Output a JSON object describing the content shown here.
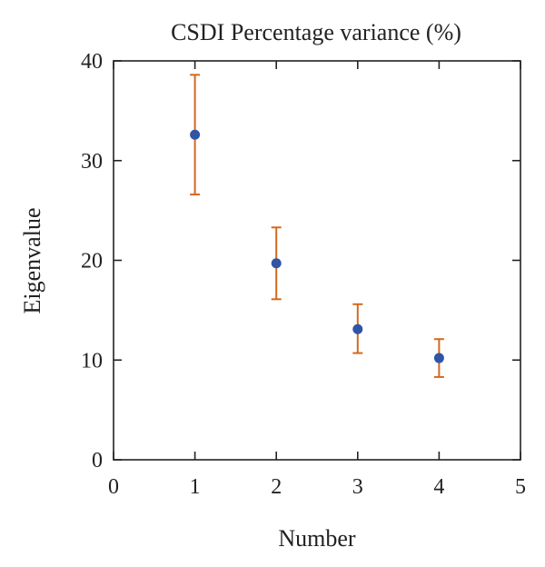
{
  "chart_data": {
    "type": "scatter",
    "title": "CSDI Percentage variance (%)",
    "xlabel": "Number",
    "ylabel": "Eigenvalue",
    "xlim": [
      0,
      5
    ],
    "ylim": [
      0,
      40
    ],
    "xticks": [
      "0",
      "1",
      "2",
      "3",
      "4",
      "5"
    ],
    "yticks": [
      "0",
      "10",
      "20",
      "30",
      "40"
    ],
    "grid": false,
    "series": [
      {
        "x": [
          1,
          2,
          3,
          4
        ],
        "y": [
          32.6,
          19.7,
          13.1,
          10.2
        ],
        "error_lower": [
          26.6,
          16.1,
          10.7,
          8.3
        ],
        "error_upper": [
          38.6,
          23.3,
          15.6,
          12.1
        ],
        "marker_color": "#2f55a4",
        "error_color": "#d2691e"
      }
    ]
  }
}
